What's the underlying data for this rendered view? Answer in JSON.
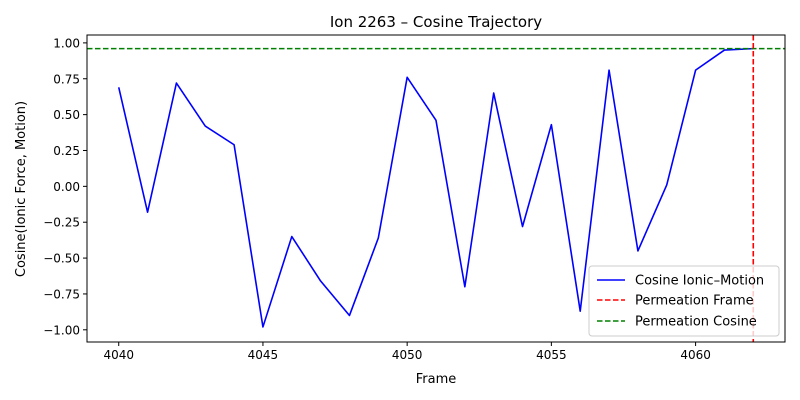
{
  "chart_data": {
    "type": "line",
    "title": "Ion 2263 – Cosine Trajectory",
    "xlabel": "Frame",
    "ylabel": "Cosine(Ionic Force, Motion)",
    "xlim": [
      4038.9,
      4063.1
    ],
    "ylim": [
      -1.085,
      1.055
    ],
    "xticks": [
      4040,
      4045,
      4050,
      4055,
      4060
    ],
    "xtick_labels": [
      "4040",
      "4045",
      "4050",
      "4055",
      "4060"
    ],
    "yticks": [
      -1.0,
      -0.75,
      -0.5,
      -0.25,
      0.0,
      0.25,
      0.5,
      0.75,
      1.0
    ],
    "ytick_labels": [
      "−1.00",
      "−0.75",
      "−0.50",
      "−0.25",
      "0.00",
      "0.25",
      "0.50",
      "0.75",
      "1.00"
    ],
    "grid": false,
    "legend_position": "lower-right",
    "series": [
      {
        "name": "Cosine Ionic–Motion",
        "color": "#0000ff",
        "style": "solid",
        "x": [
          4040,
          4041,
          4042,
          4043,
          4044,
          4045,
          4046,
          4047,
          4048,
          4049,
          4050,
          4051,
          4052,
          4053,
          4054,
          4055,
          4056,
          4057,
          4058,
          4059,
          4060,
          4061,
          4062
        ],
        "y": [
          0.69,
          -0.18,
          0.72,
          0.42,
          0.29,
          -0.98,
          -0.35,
          -0.66,
          -0.9,
          -0.36,
          0.76,
          0.46,
          -0.7,
          0.65,
          -0.28,
          0.43,
          -0.87,
          0.81,
          -0.45,
          0.01,
          0.81,
          0.95,
          0.96
        ]
      }
    ],
    "vertical_line": {
      "name": "Permeation Frame",
      "x": 4062,
      "color": "#ff0000",
      "style": "dashed"
    },
    "horizontal_line": {
      "name": "Permeation Cosine",
      "y": 0.96,
      "color": "#008000",
      "style": "dashed"
    }
  }
}
